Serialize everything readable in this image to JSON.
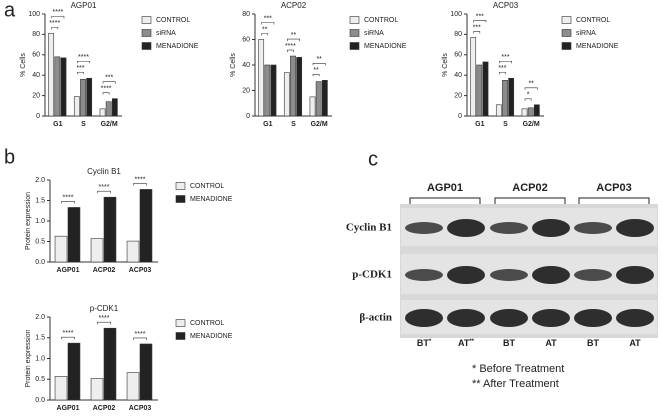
{
  "panel_labels": [
    "a",
    "b",
    "c"
  ],
  "chart_data": [
    {
      "type": "bar",
      "title": "AGP01",
      "y_label": "% Cells",
      "categories": [
        "G1",
        "S",
        "G2/M"
      ],
      "series": [
        {
          "name": "CONTROL",
          "color": "#eeeeee",
          "values": [
            81,
            19,
            7
          ]
        },
        {
          "name": "siRNA",
          "color": "#8c8c8c",
          "values": [
            58,
            36,
            14
          ]
        },
        {
          "name": "MENADIONE",
          "color": "#222222",
          "values": [
            57,
            37,
            17
          ]
        }
      ],
      "ylim": [
        0,
        100
      ],
      "yticks": [
        0,
        20,
        40,
        60,
        80,
        100
      ],
      "significance": [
        {
          "category": "G1",
          "text": "****"
        },
        {
          "category": "G1",
          "text": "****"
        },
        {
          "category": "S",
          "text": "***"
        },
        {
          "category": "S",
          "text": "****"
        },
        {
          "category": "G2/M",
          "text": "****"
        },
        {
          "category": "G2/M",
          "text": "***"
        }
      ]
    },
    {
      "type": "bar",
      "title": "ACP02",
      "y_label": "% Cells",
      "categories": [
        "G1",
        "S",
        "G2/M"
      ],
      "series": [
        {
          "name": "CONTROL",
          "color": "#eeeeee",
          "values": [
            60,
            34,
            15
          ]
        },
        {
          "name": "siRNA",
          "color": "#8c8c8c",
          "values": [
            40,
            47,
            27
          ]
        },
        {
          "name": "MENADIONE",
          "color": "#222222",
          "values": [
            40,
            46,
            28
          ]
        }
      ],
      "ylim": [
        0,
        80
      ],
      "yticks": [
        0,
        20,
        40,
        60,
        80
      ],
      "significance": [
        {
          "category": "G1",
          "text": "**"
        },
        {
          "category": "G1",
          "text": "***"
        },
        {
          "category": "S",
          "text": "****"
        },
        {
          "category": "S",
          "text": "**"
        },
        {
          "category": "G2/M",
          "text": "**"
        },
        {
          "category": "G2/M",
          "text": "**"
        }
      ]
    },
    {
      "type": "bar",
      "title": "ACP03",
      "y_label": "% Cells",
      "categories": [
        "G1",
        "S",
        "G2/M"
      ],
      "series": [
        {
          "name": "CONTROL",
          "color": "#eeeeee",
          "values": [
            77,
            11,
            7
          ]
        },
        {
          "name": "siRNA",
          "color": "#8c8c8c",
          "values": [
            50,
            35,
            8
          ]
        },
        {
          "name": "MENADIONE",
          "color": "#222222",
          "values": [
            53,
            37,
            11
          ]
        }
      ],
      "ylim": [
        0,
        100
      ],
      "yticks": [
        0,
        20,
        40,
        60,
        80,
        100
      ],
      "significance": [
        {
          "category": "G1",
          "text": "***"
        },
        {
          "category": "G1",
          "text": "***"
        },
        {
          "category": "S",
          "text": "***"
        },
        {
          "category": "S",
          "text": "***"
        },
        {
          "category": "G2/M",
          "text": "*"
        },
        {
          "category": "G2/M",
          "text": "**"
        }
      ]
    },
    {
      "type": "bar",
      "title": "Cyclin B1",
      "y_label": "Protein expression",
      "categories": [
        "AGP01",
        "ACP02",
        "ACP03"
      ],
      "series": [
        {
          "name": "CONTROL",
          "color": "#eeeeee",
          "values": [
            0.63,
            0.57,
            0.51
          ]
        },
        {
          "name": "MENADIONE",
          "color": "#222222",
          "values": [
            1.33,
            1.58,
            1.77
          ]
        }
      ],
      "ylim": [
        0,
        2
      ],
      "yticks": [
        {
          "value": 0,
          "label": "0.0"
        },
        {
          "value": 0.5,
          "label": "0.5"
        },
        {
          "value": 1,
          "label": "1.0"
        },
        {
          "value": 1.5,
          "label": "1.5"
        },
        {
          "value": 2,
          "label": "2.0"
        }
      ],
      "significance": [
        {
          "category": "AGP01",
          "text": "****"
        },
        {
          "category": "ACP02",
          "text": "****"
        },
        {
          "category": "ACP03",
          "text": "****"
        }
      ]
    },
    {
      "type": "bar",
      "title": "p-CDK1",
      "y_label": "Protein expression",
      "categories": [
        "AGP01",
        "ACP02",
        "ACP03"
      ],
      "series": [
        {
          "name": "CONTROL",
          "color": "#eeeeee",
          "values": [
            0.57,
            0.52,
            0.66
          ]
        },
        {
          "name": "MENADIONE",
          "color": "#222222",
          "values": [
            1.37,
            1.73,
            1.35
          ]
        }
      ],
      "ylim": [
        0,
        2
      ],
      "yticks": [
        {
          "value": 0,
          "label": "0.0"
        },
        {
          "value": 0.5,
          "label": "0.5"
        },
        {
          "value": 1,
          "label": "1.0"
        },
        {
          "value": 1.5,
          "label": "1.5"
        },
        {
          "value": 2,
          "label": "2.0"
        }
      ],
      "significance": [
        {
          "category": "AGP01",
          "text": "****"
        },
        {
          "category": "ACP02",
          "text": "****"
        },
        {
          "category": "ACP03",
          "text": "****"
        }
      ]
    }
  ],
  "blot": {
    "groups": [
      "AGP01",
      "ACP02",
      "ACP03"
    ],
    "rows": [
      "Cyclin B1",
      "p-CDK1",
      "β-actin"
    ],
    "lanes": [
      {
        "label": "BT",
        "sup": "*"
      },
      {
        "label": "AT",
        "sup": "**"
      },
      {
        "label": "BT"
      },
      {
        "label": "AT"
      },
      {
        "label": "BT"
      },
      {
        "label": "AT"
      }
    ],
    "notes": [
      "* Before Treatment",
      "** After Treatment"
    ]
  }
}
